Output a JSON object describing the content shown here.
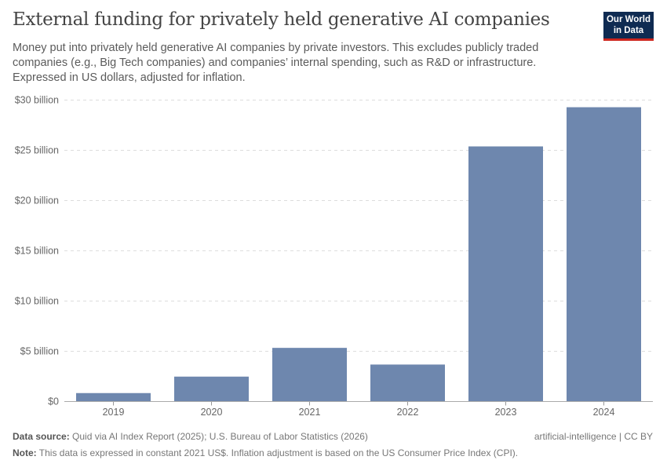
{
  "title": "External funding for privately held generative AI companies",
  "subtitle": "Money put into privately held generative AI companies by private investors. This excludes publicly traded companies (e.g., Big Tech companies) and companies’ internal spending, such as R&D or infrastructure. Expressed in US dollars, adjusted for inflation.",
  "logo": {
    "line1": "Our World",
    "line2": "in Data"
  },
  "chart_data": {
    "type": "bar",
    "categories": [
      "2019",
      "2020",
      "2021",
      "2022",
      "2023",
      "2024"
    ],
    "values": [
      0.84,
      2.48,
      5.34,
      3.68,
      25.39,
      29.29
    ],
    "unit": "billion US$",
    "ylim": [
      0,
      30
    ],
    "yticks": [
      0,
      5,
      10,
      15,
      20,
      25,
      30
    ],
    "ytick_labels": [
      "$0",
      "$5 billion",
      "$10 billion",
      "$15 billion",
      "$20 billion",
      "$25 billion",
      "$30 billion"
    ],
    "grid": true,
    "bar_color": "#6e87ae"
  },
  "footer": {
    "source_label": "Data source:",
    "source": "Quid via AI Index Report (2025); U.S. Bureau of Labor Statistics (2026)",
    "note_label": "Note:",
    "note": "This data is expressed in constant 2021 US$. Inflation adjustment is based on the US Consumer Price Index (CPI).",
    "license": "artificial-intelligence | CC BY"
  }
}
